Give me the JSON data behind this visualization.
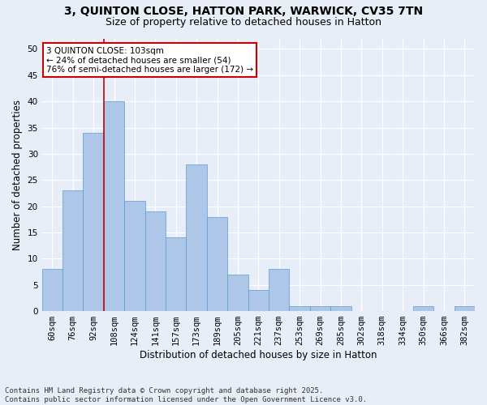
{
  "title1": "3, QUINTON CLOSE, HATTON PARK, WARWICK, CV35 7TN",
  "title2": "Size of property relative to detached houses in Hatton",
  "xlabel": "Distribution of detached houses by size in Hatton",
  "ylabel": "Number of detached properties",
  "bar_labels": [
    "60sqm",
    "76sqm",
    "92sqm",
    "108sqm",
    "124sqm",
    "141sqm",
    "157sqm",
    "173sqm",
    "189sqm",
    "205sqm",
    "221sqm",
    "237sqm",
    "253sqm",
    "269sqm",
    "285sqm",
    "302sqm",
    "318sqm",
    "334sqm",
    "350sqm",
    "366sqm",
    "382sqm"
  ],
  "bar_values": [
    8,
    23,
    34,
    40,
    21,
    19,
    14,
    28,
    18,
    7,
    4,
    8,
    1,
    1,
    1,
    0,
    0,
    0,
    1,
    0,
    1
  ],
  "bar_color": "#aec6e8",
  "bar_edge_color": "#5b9bd5",
  "annotation_text": "3 QUINTON CLOSE: 103sqm\n← 24% of detached houses are smaller (54)\n76% of semi-detached houses are larger (172) →",
  "annotation_box_color": "#ffffff",
  "annotation_box_edge": "#cc0000",
  "vline_color": "#cc0000",
  "yticks": [
    0,
    5,
    10,
    15,
    20,
    25,
    30,
    35,
    40,
    45,
    50
  ],
  "ylim": [
    0,
    52
  ],
  "bg_color": "#e8eef8",
  "grid_color": "#ffffff",
  "footer": "Contains HM Land Registry data © Crown copyright and database right 2025.\nContains public sector information licensed under the Open Government Licence v3.0.",
  "title1_fontsize": 10,
  "title2_fontsize": 9,
  "xlabel_fontsize": 8.5,
  "ylabel_fontsize": 8.5,
  "tick_fontsize": 7.5,
  "annotation_fontsize": 7.5,
  "footer_fontsize": 6.5
}
